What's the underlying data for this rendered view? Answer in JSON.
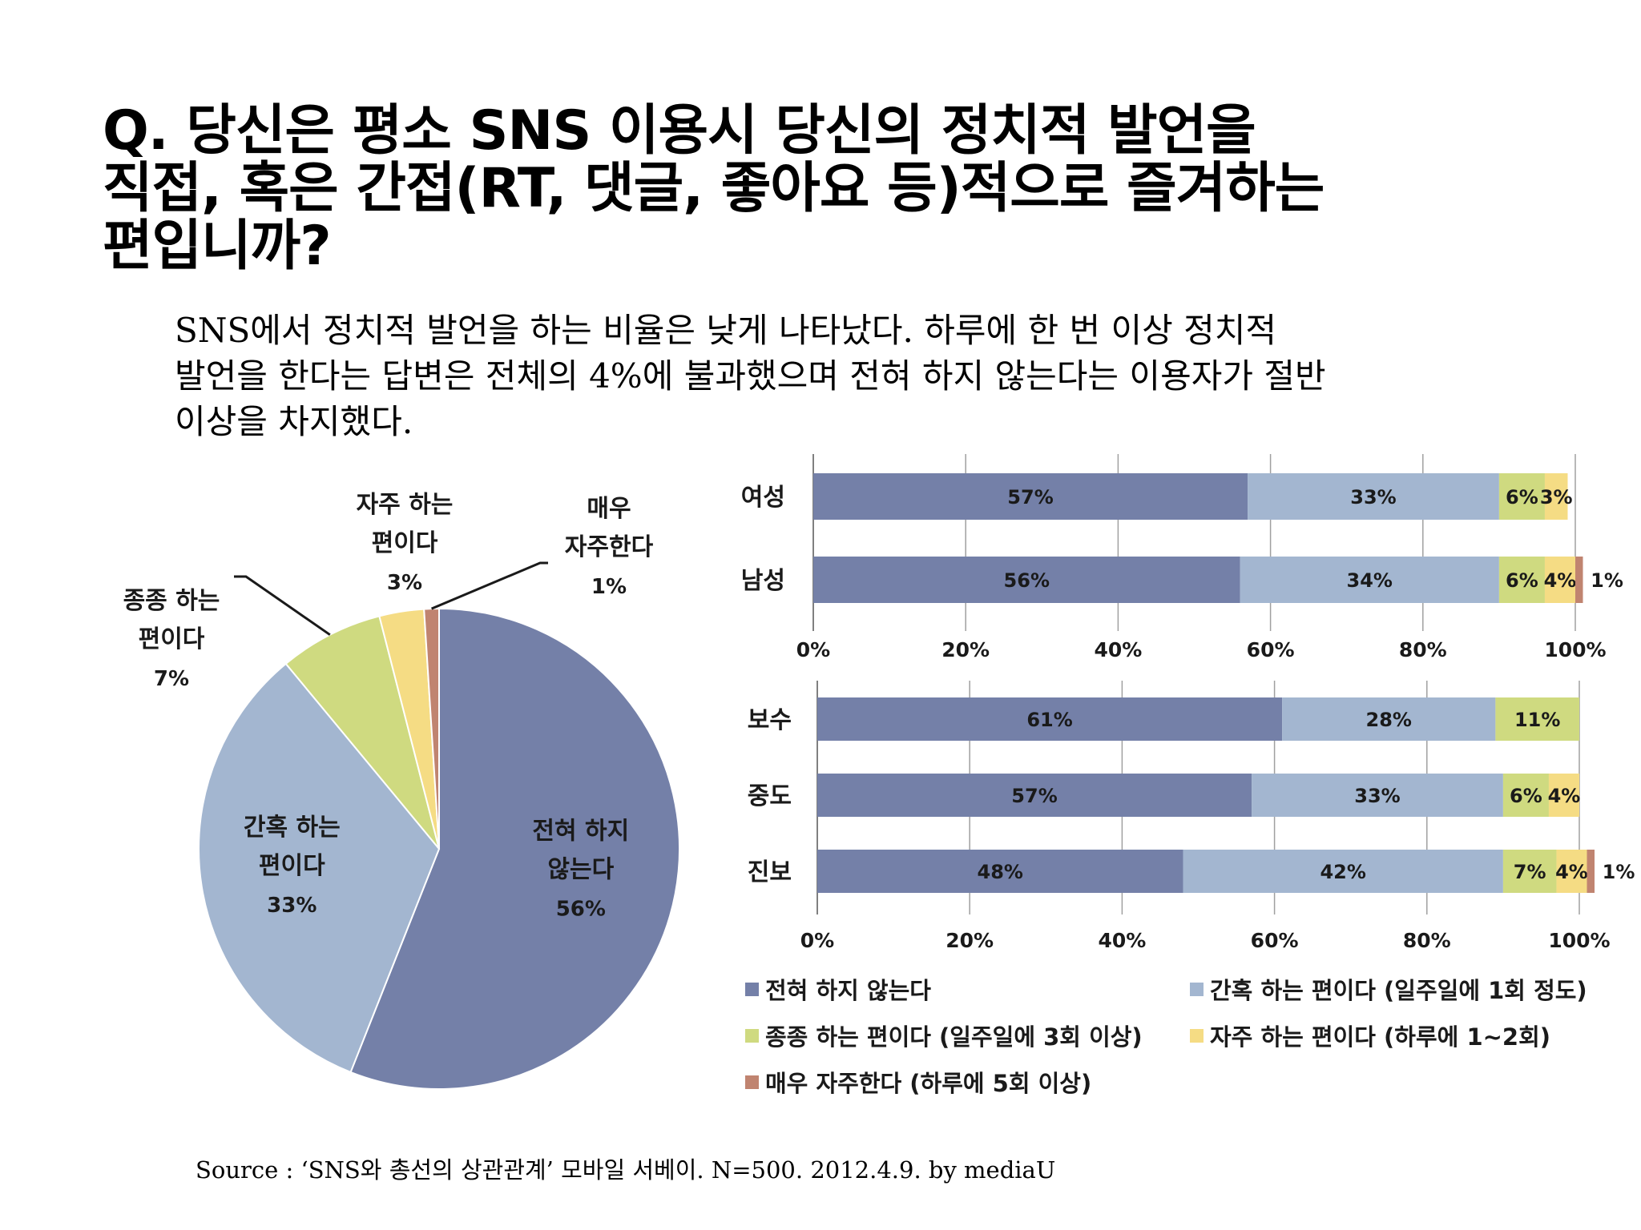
{
  "title": {
    "lines": [
      "Q. 당신은 평소 SNS 이용시 당신의 정치적 발언을",
      "직접, 혹은 간접(RT, 댓글, 좋아요 등)적으로 즐겨하는",
      "편입니까?"
    ]
  },
  "subtitle": {
    "lines": [
      "SNS에서 정치적 발언을 하는 비율은 낮게 나타났다. 하루에 한 번 이상 정치적",
      "발언을 한다는 답변은 전체의 4%에 불과했으며 전혀 하지 않는다는 이용자가 절반",
      "이상을 차지했다."
    ]
  },
  "source": "Source : ‘SNS와 총선의 상관관계’ 모바일 서베이. N=500. 2012.4.9. by mediaU",
  "chart_data": [
    {
      "type": "pie",
      "categories": [
        "전혀 하지 않는다",
        "간혹 하는 편이다",
        "종종 하는 편이다",
        "자주 하는 편이다",
        "매우 자주한다"
      ],
      "values": [
        56,
        33,
        7,
        3,
        1
      ],
      "labels": [
        {
          "lines": [
            "전혀 하지",
            "않는다"
          ],
          "pct": "56%"
        },
        {
          "lines": [
            "간혹 하는",
            "편이다"
          ],
          "pct": "33%"
        },
        {
          "lines": [
            "종종 하는",
            "편이다"
          ],
          "pct": "7%"
        },
        {
          "lines": [
            "자주 하는",
            "편이다"
          ],
          "pct": "3%"
        },
        {
          "lines": [
            "매우",
            "자주한다"
          ],
          "pct": "1%"
        }
      ],
      "colors": [
        "#7480a8",
        "#a3b6d0",
        "#cfda80",
        "#f5dc84",
        "#c08470"
      ]
    },
    {
      "type": "bar",
      "orientation": "horizontal-stacked-100",
      "categories": [
        "여성",
        "남성"
      ],
      "series": [
        {
          "name": "전혀 하지 않는다",
          "values": [
            57,
            56
          ]
        },
        {
          "name": "간혹 하는 편이다 (일주일에 1회 정도)",
          "values": [
            33,
            34
          ]
        },
        {
          "name": "종종 하는 편이다 (일주일에 3회 이상)",
          "values": [
            6,
            6
          ]
        },
        {
          "name": "자주 하는 편이다 (하루에 1~2회)",
          "values": [
            3,
            4
          ]
        },
        {
          "name": "매우 자주한다 (하루에 5회 이상)",
          "values": [
            0,
            1
          ]
        }
      ],
      "data_labels": [
        [
          "57%",
          "33%",
          "6%",
          "3%",
          ""
        ],
        [
          "56%",
          "34%",
          "6%",
          "4%",
          "1%"
        ]
      ],
      "xlim": [
        0,
        100
      ],
      "xticks": [
        "0%",
        "20%",
        "40%",
        "60%",
        "80%",
        "100%"
      ],
      "grid": true
    },
    {
      "type": "bar",
      "orientation": "horizontal-stacked-100",
      "categories": [
        "보수",
        "중도",
        "진보"
      ],
      "series": [
        {
          "name": "전혀 하지 않는다",
          "values": [
            61,
            57,
            48
          ]
        },
        {
          "name": "간혹 하는 편이다 (일주일에 1회 정도)",
          "values": [
            28,
            33,
            42
          ]
        },
        {
          "name": "종종 하는 편이다 (일주일에 3회 이상)",
          "values": [
            11,
            6,
            7
          ]
        },
        {
          "name": "자주 하는 편이다 (하루에 1~2회)",
          "values": [
            0,
            4,
            4
          ]
        },
        {
          "name": "매우 자주한다 (하루에 5회 이상)",
          "values": [
            0,
            0,
            1
          ]
        }
      ],
      "data_labels": [
        [
          "61%",
          "28%",
          "11%",
          "",
          ""
        ],
        [
          "57%",
          "33%",
          "6%",
          "4%",
          ""
        ],
        [
          "48%",
          "42%",
          "7%",
          "4%",
          "1%"
        ]
      ],
      "xlim": [
        0,
        100
      ],
      "xticks": [
        "0%",
        "20%",
        "40%",
        "60%",
        "80%",
        "100%"
      ],
      "grid": true,
      "legend_position": "bottom"
    }
  ],
  "legend": [
    {
      "label": "전혀 하지 않는다",
      "color": "#7480a8"
    },
    {
      "label": "간혹 하는 편이다 (일주일에 1회 정도)",
      "color": "#a3b6d0"
    },
    {
      "label": "종종 하는 편이다 (일주일에 3회 이상)",
      "color": "#cfda80"
    },
    {
      "label": "자주 하는 편이다 (하루에 1~2회)",
      "color": "#f5dc84"
    },
    {
      "label": "매우 자주한다 (하루에 5회 이상)",
      "color": "#c08470"
    }
  ]
}
